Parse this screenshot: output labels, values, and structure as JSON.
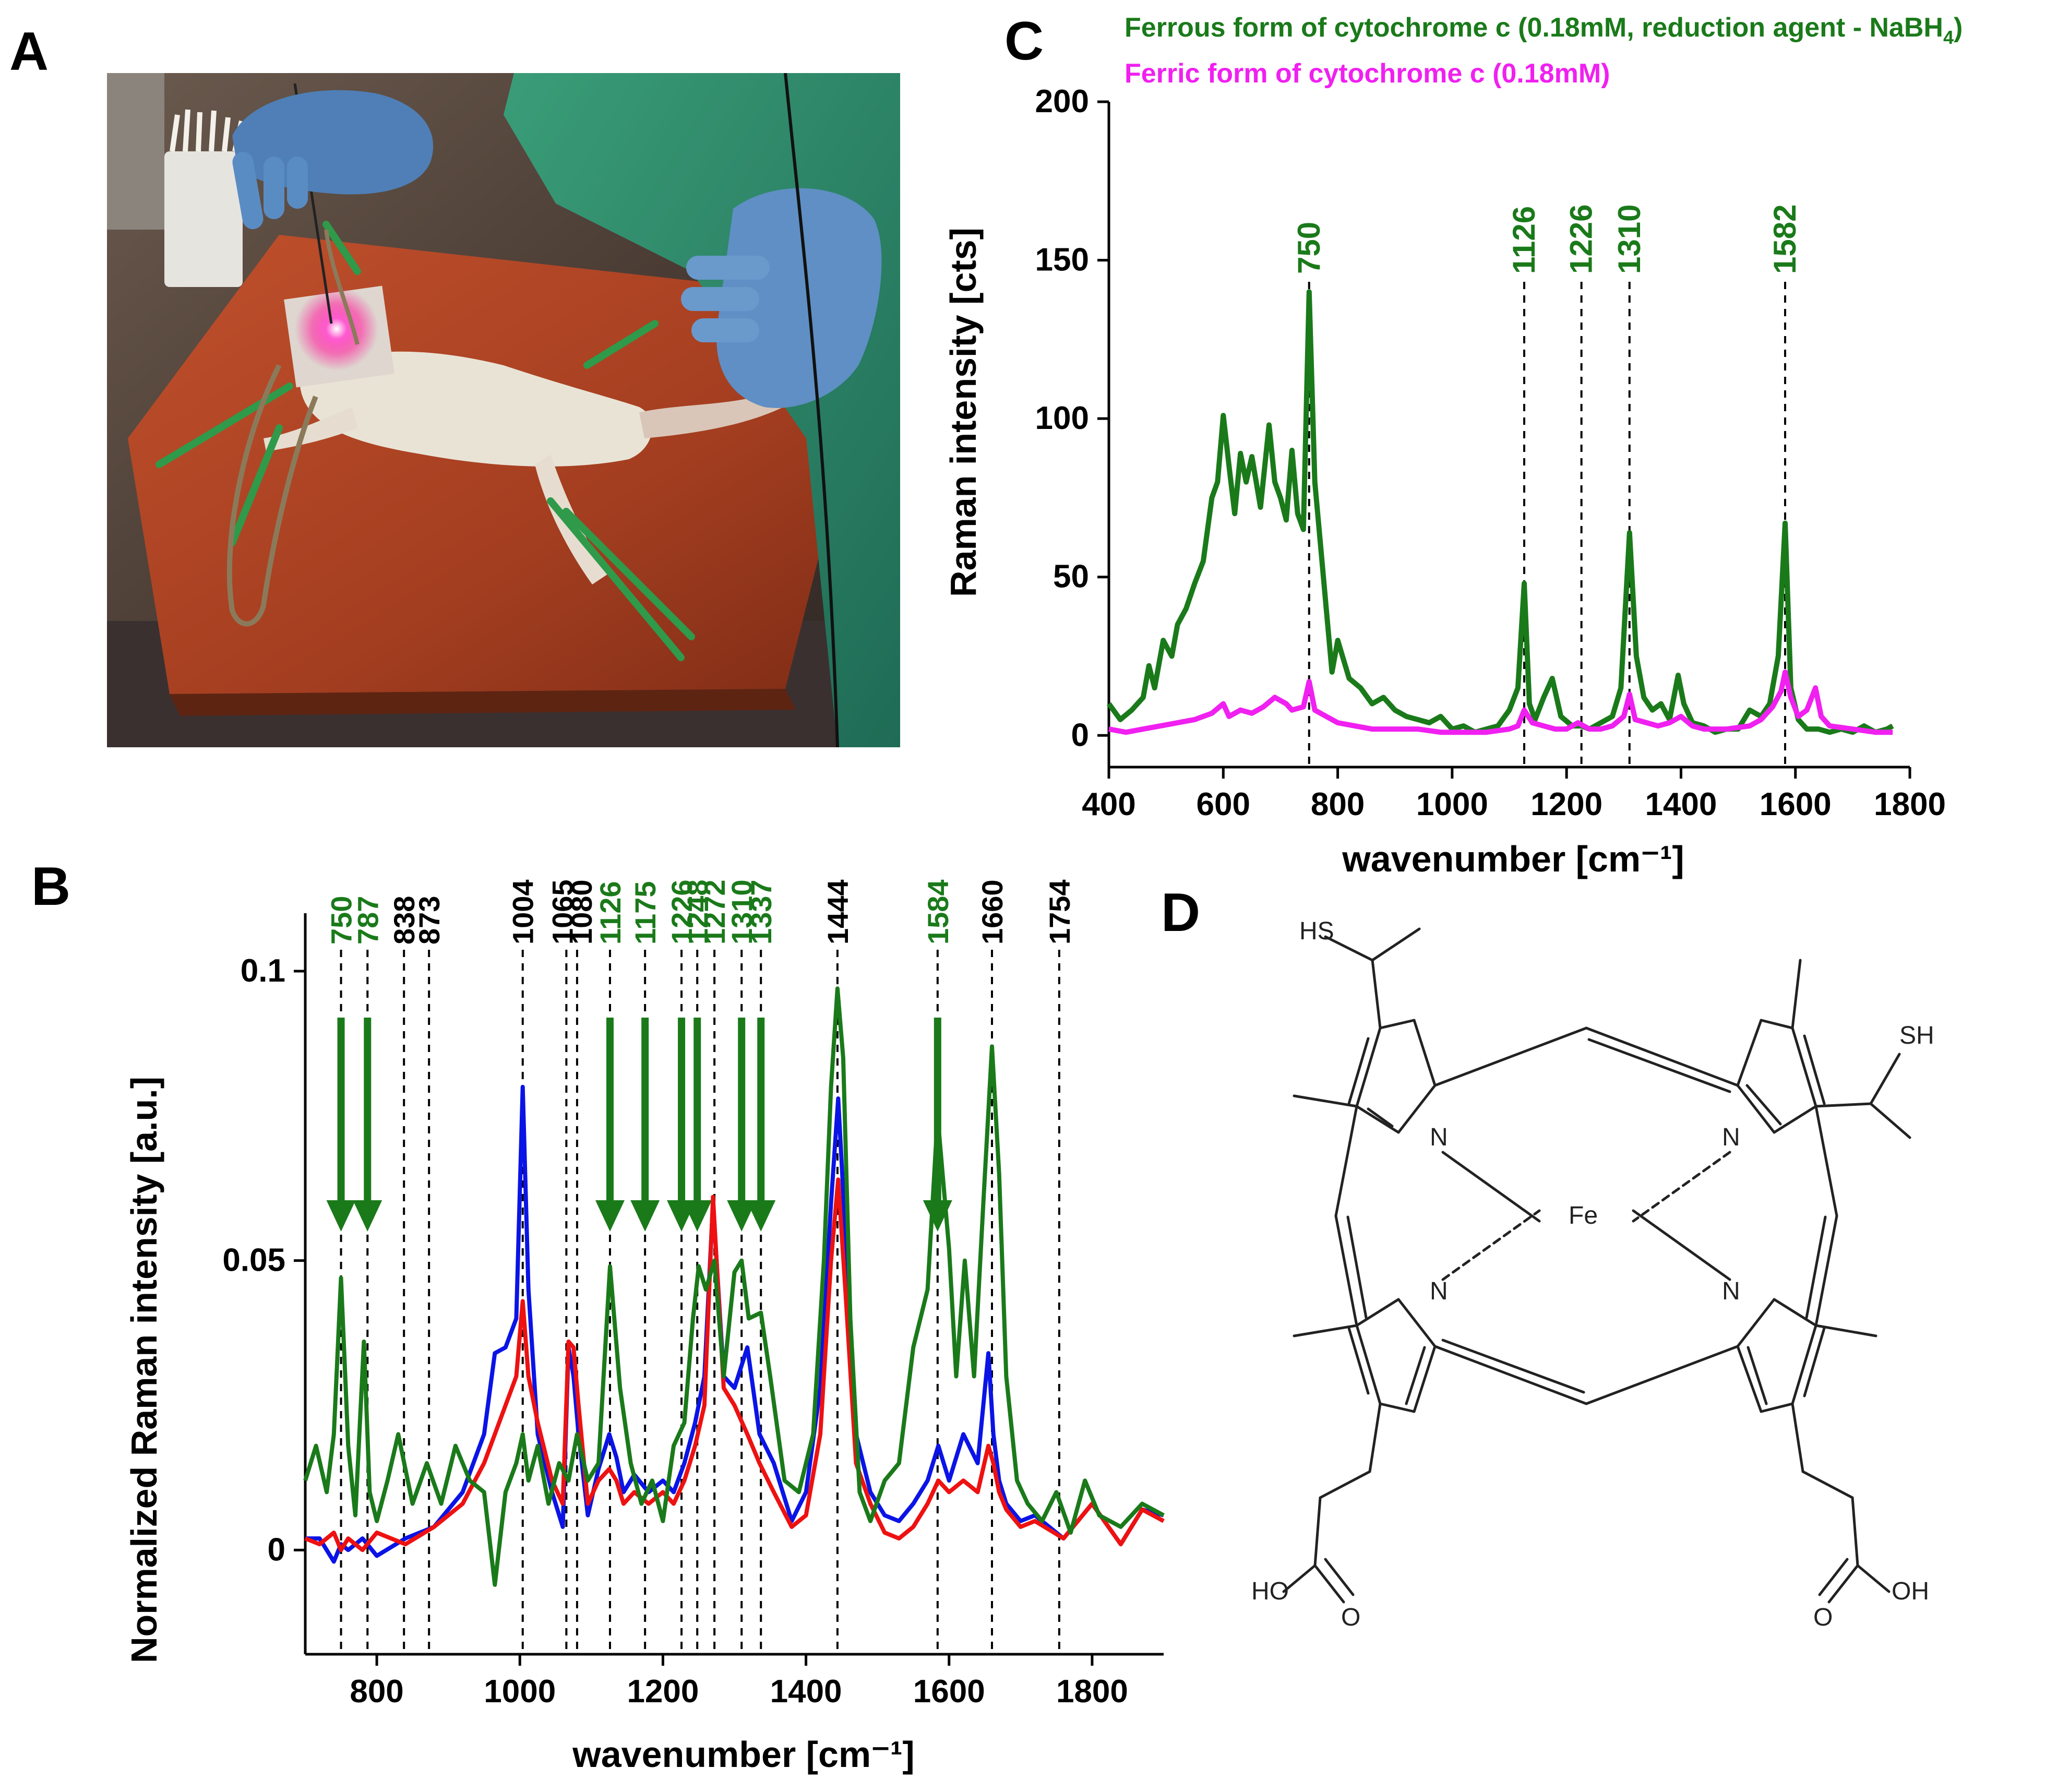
{
  "panels": {
    "a": {
      "letter": "A"
    },
    "b": {
      "letter": "B"
    },
    "c": {
      "letter": "C"
    },
    "d": {
      "letter": "D"
    }
  },
  "colors": {
    "green": "#1a7a1a",
    "blue": "#0a14e6",
    "red": "#ee1111",
    "magenta": "#f020f0",
    "black": "#000000"
  },
  "structure": {
    "hs_left": "HS",
    "sh_right": "SH",
    "n1": "N",
    "n2": "N",
    "n3": "N",
    "n4": "N",
    "fe": "Fe",
    "ho_left": "HO",
    "o_left": "O",
    "o_right": "O",
    "oh_right": "OH"
  },
  "chart_data": [
    {
      "id": "panel-B",
      "type": "line",
      "title": "",
      "xlabel": "wavenumber [cm⁻¹]",
      "ylabel": "Normalized Raman intensity [a.u.]",
      "xlim": [
        700,
        1900
      ],
      "ylim": [
        -0.018,
        0.11
      ],
      "xticks": [
        800,
        1000,
        1200,
        1400,
        1600,
        1800
      ],
      "xtick_labels": [
        "800",
        "1000",
        "1200",
        "1400",
        "1600",
        "1800"
      ],
      "yticks": [
        0,
        0.05,
        0.1
      ],
      "ytick_labels": [
        "0",
        "0.05",
        "0.1"
      ],
      "dashed_markers": [
        {
          "x": 750,
          "label": "750",
          "color": "green",
          "arrow": true
        },
        {
          "x": 787,
          "label": "787",
          "color": "green",
          "arrow": true
        },
        {
          "x": 838,
          "label": "838",
          "color": "black",
          "arrow": false
        },
        {
          "x": 873,
          "label": "873",
          "color": "black",
          "arrow": false
        },
        {
          "x": 1004,
          "label": "1004",
          "color": "black",
          "arrow": false
        },
        {
          "x": 1065,
          "label": "1065",
          "color": "black",
          "arrow": false
        },
        {
          "x": 1080,
          "label": "1080",
          "color": "black",
          "arrow": false
        },
        {
          "x": 1126,
          "label": "1126",
          "color": "green",
          "arrow": true
        },
        {
          "x": 1175,
          "label": "1175",
          "color": "green",
          "arrow": true
        },
        {
          "x": 1226,
          "label": "1226",
          "color": "green",
          "arrow": true
        },
        {
          "x": 1248,
          "label": "1248",
          "color": "green",
          "arrow": true
        },
        {
          "x": 1272,
          "label": "1272",
          "color": "green",
          "arrow": false
        },
        {
          "x": 1310,
          "label": "1310",
          "color": "green",
          "arrow": true
        },
        {
          "x": 1337,
          "label": "1337",
          "color": "green",
          "arrow": true
        },
        {
          "x": 1444,
          "label": "1444",
          "color": "black",
          "arrow": false
        },
        {
          "x": 1584,
          "label": "1584",
          "color": "green",
          "arrow": true
        },
        {
          "x": 1660,
          "label": "1660",
          "color": "black",
          "arrow": false
        },
        {
          "x": 1754,
          "label": "1754",
          "color": "black",
          "arrow": false
        }
      ],
      "series": [
        {
          "name": "blue",
          "color": "blue",
          "x": [
            700,
            720,
            740,
            750,
            760,
            780,
            800,
            840,
            880,
            920,
            950,
            965,
            980,
            995,
            1004,
            1012,
            1025,
            1045,
            1060,
            1068,
            1075,
            1082,
            1095,
            1110,
            1125,
            1135,
            1145,
            1160,
            1180,
            1200,
            1215,
            1230,
            1245,
            1258,
            1270,
            1285,
            1300,
            1318,
            1335,
            1355,
            1380,
            1400,
            1420,
            1435,
            1445,
            1455,
            1470,
            1490,
            1510,
            1530,
            1550,
            1570,
            1585,
            1600,
            1620,
            1640,
            1655,
            1662,
            1670,
            1680,
            1700,
            1720,
            1760,
            1800,
            1840,
            1870,
            1900
          ],
          "values": [
            0.002,
            0.002,
            -0.002,
            0.001,
            0.0,
            0.002,
            -0.001,
            0.002,
            0.004,
            0.01,
            0.02,
            0.034,
            0.035,
            0.04,
            0.08,
            0.045,
            0.02,
            0.01,
            0.004,
            0.035,
            0.03,
            0.02,
            0.006,
            0.014,
            0.02,
            0.016,
            0.01,
            0.013,
            0.01,
            0.012,
            0.01,
            0.015,
            0.022,
            0.03,
            0.06,
            0.03,
            0.028,
            0.035,
            0.02,
            0.015,
            0.005,
            0.01,
            0.028,
            0.06,
            0.078,
            0.055,
            0.02,
            0.01,
            0.006,
            0.005,
            0.008,
            0.012,
            0.018,
            0.012,
            0.02,
            0.015,
            0.034,
            0.02,
            0.012,
            0.008,
            0.005,
            0.006,
            0.002,
            0.008,
            0.001,
            0.007,
            0.006
          ]
        },
        {
          "name": "red",
          "color": "red",
          "x": [
            700,
            720,
            740,
            750,
            760,
            780,
            800,
            840,
            880,
            920,
            950,
            965,
            980,
            995,
            1004,
            1012,
            1025,
            1045,
            1060,
            1068,
            1075,
            1082,
            1095,
            1110,
            1125,
            1135,
            1145,
            1160,
            1180,
            1200,
            1215,
            1230,
            1245,
            1258,
            1270,
            1285,
            1300,
            1318,
            1335,
            1355,
            1380,
            1400,
            1420,
            1435,
            1445,
            1455,
            1470,
            1490,
            1510,
            1530,
            1550,
            1570,
            1585,
            1600,
            1620,
            1640,
            1655,
            1662,
            1670,
            1680,
            1700,
            1720,
            1760,
            1800,
            1840,
            1870,
            1900
          ],
          "values": [
            0.002,
            0.001,
            0.003,
            0.0,
            0.002,
            0.0,
            0.003,
            0.001,
            0.004,
            0.008,
            0.015,
            0.02,
            0.025,
            0.03,
            0.043,
            0.03,
            0.022,
            0.012,
            0.008,
            0.036,
            0.035,
            0.025,
            0.008,
            0.012,
            0.014,
            0.012,
            0.008,
            0.01,
            0.008,
            0.01,
            0.008,
            0.012,
            0.018,
            0.025,
            0.061,
            0.028,
            0.025,
            0.02,
            0.015,
            0.01,
            0.004,
            0.006,
            0.02,
            0.05,
            0.064,
            0.045,
            0.015,
            0.008,
            0.003,
            0.002,
            0.004,
            0.008,
            0.012,
            0.01,
            0.012,
            0.01,
            0.018,
            0.015,
            0.01,
            0.007,
            0.004,
            0.005,
            0.002,
            0.008,
            0.001,
            0.007,
            0.005
          ]
        },
        {
          "name": "green",
          "color": "green",
          "x": [
            700,
            715,
            730,
            740,
            750,
            760,
            770,
            782,
            790,
            800,
            815,
            830,
            850,
            870,
            890,
            910,
            930,
            950,
            965,
            980,
            995,
            1004,
            1012,
            1025,
            1040,
            1055,
            1068,
            1080,
            1095,
            1110,
            1126,
            1140,
            1155,
            1170,
            1185,
            1200,
            1215,
            1230,
            1242,
            1250,
            1260,
            1272,
            1285,
            1300,
            1310,
            1320,
            1337,
            1350,
            1370,
            1390,
            1410,
            1425,
            1435,
            1444,
            1452,
            1462,
            1475,
            1490,
            1510,
            1530,
            1550,
            1570,
            1584,
            1600,
            1610,
            1622,
            1635,
            1648,
            1660,
            1670,
            1680,
            1695,
            1710,
            1730,
            1750,
            1770,
            1790,
            1810,
            1840,
            1870,
            1900
          ],
          "values": [
            0.012,
            0.018,
            0.01,
            0.02,
            0.047,
            0.018,
            0.006,
            0.036,
            0.01,
            0.005,
            0.012,
            0.02,
            0.008,
            0.015,
            0.008,
            0.018,
            0.012,
            0.01,
            -0.006,
            0.01,
            0.015,
            0.02,
            0.012,
            0.018,
            0.008,
            0.015,
            0.012,
            0.02,
            0.012,
            0.015,
            0.049,
            0.028,
            0.015,
            0.008,
            0.012,
            0.005,
            0.018,
            0.022,
            0.04,
            0.049,
            0.045,
            0.05,
            0.03,
            0.048,
            0.05,
            0.04,
            0.041,
            0.03,
            0.012,
            0.01,
            0.02,
            0.05,
            0.08,
            0.097,
            0.085,
            0.04,
            0.01,
            0.005,
            0.012,
            0.015,
            0.035,
            0.045,
            0.075,
            0.052,
            0.03,
            0.05,
            0.03,
            0.06,
            0.087,
            0.065,
            0.03,
            0.012,
            0.008,
            0.005,
            0.01,
            0.003,
            0.012,
            0.006,
            0.004,
            0.008,
            0.006
          ]
        }
      ]
    },
    {
      "id": "panel-C",
      "type": "line",
      "title": "",
      "xlabel": "wavenumber [cm⁻¹]",
      "ylabel": "Raman intensity [cts]",
      "xlim": [
        400,
        1800
      ],
      "ylim": [
        -10,
        200
      ],
      "xticks": [
        400,
        600,
        800,
        1000,
        1200,
        1400,
        1600,
        1800
      ],
      "xtick_labels": [
        "400",
        "600",
        "800",
        "1000",
        "1200",
        "1400",
        "1600",
        "1800"
      ],
      "yticks": [
        0,
        50,
        100,
        150,
        200
      ],
      "ytick_labels": [
        "0",
        "50",
        "100",
        "150",
        "200"
      ],
      "legend": [
        {
          "text": "Ferrous form of cytochrome c (0.18mM, reduction agent - NaBH",
          "sub": "4",
          "suffix": ")",
          "color": "green"
        },
        {
          "text": "Ferric form of cytochrome c (0.18mM)",
          "sub": "",
          "suffix": "",
          "color": "magenta"
        }
      ],
      "dashed_markers": [
        {
          "x": 750,
          "label": "750",
          "color": "green"
        },
        {
          "x": 1126,
          "label": "1126",
          "color": "green"
        },
        {
          "x": 1226,
          "label": "1226",
          "color": "green"
        },
        {
          "x": 1310,
          "label": "1310",
          "color": "green"
        },
        {
          "x": 1582,
          "label": "1582",
          "color": "green"
        }
      ],
      "series": [
        {
          "name": "Ferrous form of cytochrome c",
          "color": "green",
          "x": [
            400,
            420,
            440,
            460,
            470,
            480,
            495,
            510,
            520,
            535,
            550,
            565,
            580,
            590,
            600,
            610,
            620,
            630,
            640,
            650,
            665,
            680,
            690,
            700,
            710,
            720,
            730,
            740,
            750,
            760,
            770,
            780,
            790,
            800,
            820,
            840,
            860,
            880,
            900,
            920,
            940,
            960,
            980,
            1000,
            1020,
            1040,
            1060,
            1080,
            1100,
            1115,
            1126,
            1135,
            1145,
            1160,
            1175,
            1190,
            1210,
            1226,
            1240,
            1260,
            1280,
            1295,
            1310,
            1322,
            1335,
            1350,
            1365,
            1380,
            1395,
            1405,
            1420,
            1440,
            1460,
            1480,
            1500,
            1520,
            1540,
            1555,
            1570,
            1582,
            1592,
            1605,
            1620,
            1640,
            1660,
            1680,
            1700,
            1720,
            1740,
            1760,
            1770
          ],
          "values": [
            10,
            5,
            8,
            12,
            22,
            15,
            30,
            25,
            35,
            40,
            48,
            55,
            75,
            80,
            101,
            85,
            70,
            89,
            80,
            88,
            72,
            98,
            80,
            75,
            68,
            90,
            70,
            65,
            140,
            80,
            60,
            40,
            20,
            30,
            18,
            15,
            10,
            12,
            8,
            6,
            5,
            4,
            6,
            2,
            3,
            1,
            2,
            3,
            8,
            15,
            48,
            10,
            5,
            12,
            18,
            6,
            3,
            3,
            2,
            4,
            6,
            15,
            64,
            25,
            12,
            8,
            10,
            5,
            19,
            10,
            4,
            3,
            1,
            2,
            2,
            8,
            6,
            10,
            25,
            67,
            15,
            5,
            2,
            2,
            1,
            2,
            1,
            3,
            1,
            2,
            3
          ]
        },
        {
          "name": "Ferric form of cytochrome c",
          "color": "magenta",
          "x": [
            400,
            430,
            460,
            490,
            520,
            550,
            580,
            600,
            610,
            630,
            650,
            670,
            690,
            710,
            720,
            740,
            750,
            760,
            780,
            800,
            830,
            860,
            900,
            940,
            980,
            1020,
            1060,
            1100,
            1115,
            1126,
            1140,
            1160,
            1180,
            1200,
            1220,
            1240,
            1260,
            1280,
            1300,
            1310,
            1320,
            1340,
            1360,
            1380,
            1400,
            1420,
            1440,
            1480,
            1520,
            1540,
            1560,
            1575,
            1582,
            1592,
            1605,
            1620,
            1635,
            1645,
            1660,
            1700,
            1740,
            1770
          ],
          "values": [
            2,
            1,
            2,
            3,
            4,
            5,
            7,
            10,
            6,
            8,
            7,
            9,
            12,
            10,
            8,
            9,
            17,
            8,
            6,
            4,
            3,
            2,
            2,
            2,
            1,
            1,
            1,
            2,
            3,
            8,
            4,
            3,
            2,
            2,
            4,
            2,
            2,
            3,
            6,
            13,
            5,
            4,
            3,
            4,
            6,
            3,
            2,
            2,
            3,
            5,
            9,
            14,
            20,
            12,
            6,
            8,
            15,
            6,
            3,
            2,
            1,
            1
          ]
        }
      ]
    }
  ]
}
